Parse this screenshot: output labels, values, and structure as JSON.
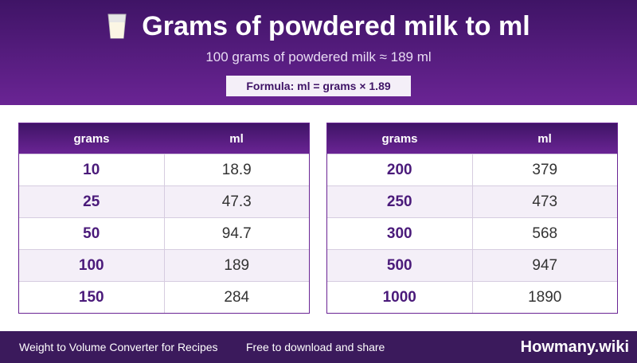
{
  "header": {
    "title": "Grams of powdered milk to ml",
    "subtitle": "100 grams of powdered milk ≈ 189 ml",
    "formula": "Formula: ml = grams × 1.89"
  },
  "tables": [
    {
      "columns": [
        "grams",
        "ml"
      ],
      "rows": [
        [
          10,
          18.9
        ],
        [
          25,
          47.3
        ],
        [
          50,
          94.7
        ],
        [
          100,
          189
        ],
        [
          150,
          284
        ]
      ]
    },
    {
      "columns": [
        "grams",
        "ml"
      ],
      "rows": [
        [
          200,
          379
        ],
        [
          250,
          473
        ],
        [
          300,
          568
        ],
        [
          500,
          947
        ],
        [
          1000,
          1890
        ]
      ]
    }
  ],
  "footer": {
    "left": "Weight to Volume Converter for Recipes",
    "middle": "Free to download and share",
    "brand": "Howmany.wiki"
  }
}
